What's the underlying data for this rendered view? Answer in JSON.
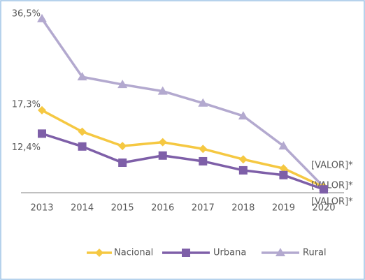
{
  "chart_data": {
    "type": "line",
    "categories": [
      "2013",
      "2014",
      "2015",
      "2016",
      "2017",
      "2018",
      "2019",
      "2020"
    ],
    "series": [
      {
        "name": "Nacional",
        "color": "#f5c842",
        "marker": "diamond",
        "values": [
          17.3,
          12.8,
          9.8,
          10.6,
          9.2,
          7.0,
          5.1,
          1.2
        ],
        "value_labels": [
          "17,3%",
          null,
          null,
          null,
          null,
          null,
          null,
          "[VALOR]*"
        ]
      },
      {
        "name": "Urbana",
        "color": "#7e5fa8",
        "marker": "square",
        "values": [
          12.4,
          9.7,
          6.3,
          7.8,
          6.6,
          4.7,
          3.7,
          0.7
        ],
        "value_labels": [
          "12,4%",
          null,
          null,
          null,
          null,
          null,
          null,
          "[VALOR]*"
        ]
      },
      {
        "name": "Rural",
        "color": "#b3a9cf",
        "marker": "triangle",
        "values": [
          36.5,
          24.3,
          22.7,
          21.3,
          18.8,
          16.1,
          9.8,
          1.2
        ],
        "value_labels": [
          "36,5%",
          null,
          null,
          null,
          null,
          null,
          null,
          "[VALOR]*"
        ]
      }
    ],
    "ylim": [
      0,
      40
    ],
    "legend": "bottom"
  }
}
